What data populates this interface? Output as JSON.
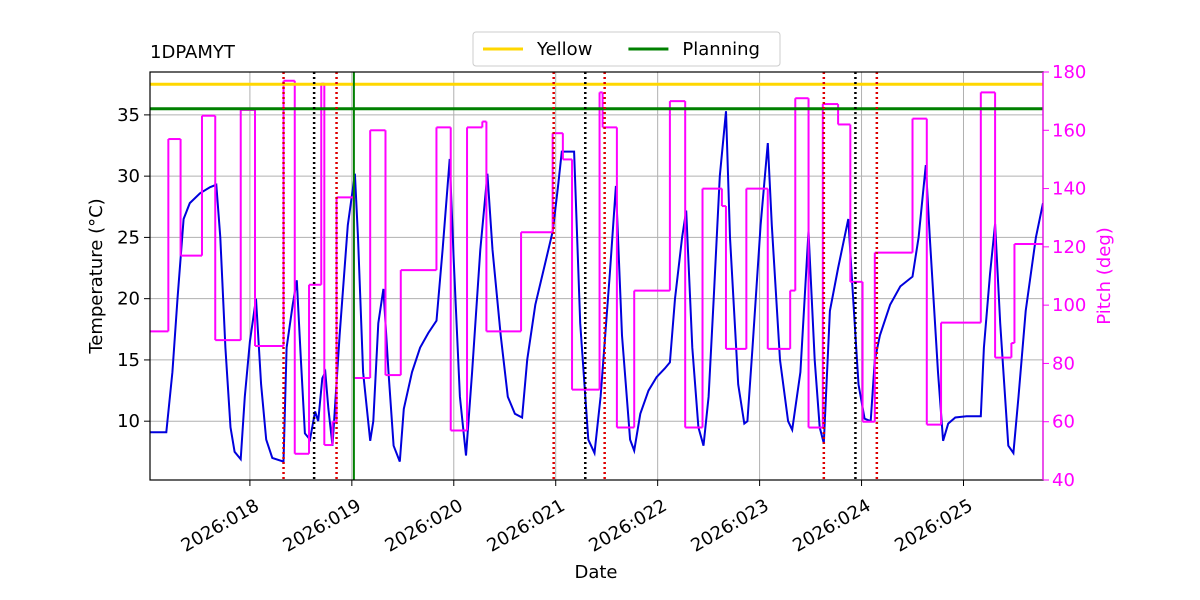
{
  "chart_data": {
    "type": "line",
    "title": "1DPAMYT",
    "xlabel": "Date",
    "ylabel": "Temperature (°C)",
    "y2label": "Pitch (deg)",
    "xlim": [
      17.02,
      25.78
    ],
    "ylim": [
      5.2,
      38.5
    ],
    "y2lim": [
      40,
      180
    ],
    "xticks": [
      {
        "value": 18,
        "label": "2026:018"
      },
      {
        "value": 19,
        "label": "2026:019"
      },
      {
        "value": 20,
        "label": "2026:020"
      },
      {
        "value": 21,
        "label": "2026:021"
      },
      {
        "value": 22,
        "label": "2026:022"
      },
      {
        "value": 23,
        "label": "2026:023"
      },
      {
        "value": 24,
        "label": "2026:024"
      },
      {
        "value": 25,
        "label": "2026:025"
      }
    ],
    "yticks": [
      10,
      15,
      20,
      25,
      30,
      35
    ],
    "y2ticks": [
      40,
      60,
      80,
      100,
      120,
      140,
      160,
      180
    ],
    "grid": true,
    "legend": "top",
    "y2color": "#ff00ff",
    "series": [
      {
        "color": "#0000dd",
        "axis": "y",
        "x": [
          17.02,
          17.18,
          17.24,
          17.29,
          17.35,
          17.41,
          17.51,
          17.61,
          17.67,
          17.71,
          17.76,
          17.81,
          17.85,
          17.91,
          17.95,
          18.0,
          18.06,
          18.11,
          18.16,
          18.22,
          18.33,
          18.36,
          18.42,
          18.46,
          18.5,
          18.54,
          18.59,
          18.64,
          18.67,
          18.71,
          18.74,
          18.77,
          18.81,
          18.88,
          18.96,
          19.03,
          19.06,
          19.11,
          19.18,
          19.21,
          19.26,
          19.31,
          19.36,
          19.41,
          19.47,
          19.51,
          19.59,
          19.67,
          19.75,
          19.83,
          19.89,
          19.96,
          20.0,
          20.06,
          20.12,
          20.18,
          20.26,
          20.33,
          20.38,
          20.46,
          20.53,
          20.6,
          20.67,
          20.72,
          20.8,
          20.9,
          20.97,
          21.02,
          21.06,
          21.18,
          21.24,
          21.32,
          21.38,
          21.44,
          21.53,
          21.59,
          21.65,
          21.73,
          21.77,
          21.83,
          21.91,
          21.99,
          22.07,
          22.12,
          22.17,
          22.24,
          22.28,
          22.34,
          22.4,
          22.45,
          22.5,
          22.55,
          22.61,
          22.67,
          22.71,
          22.79,
          22.85,
          22.88,
          22.93,
          23.01,
          23.08,
          23.12,
          23.2,
          23.28,
          23.32,
          23.4,
          23.48,
          23.54,
          23.59,
          23.63,
          23.69,
          23.77,
          23.87,
          23.91,
          23.97,
          24.03,
          24.09,
          24.13,
          24.18,
          24.28,
          24.38,
          24.5,
          24.56,
          24.63,
          24.67,
          24.75,
          24.8,
          24.85,
          24.92,
          25.03,
          25.17,
          25.2,
          25.26,
          25.31,
          25.36,
          25.44,
          25.49,
          25.54,
          25.61,
          25.71,
          25.78
        ],
        "values": [
          9.1,
          9.1,
          14,
          20,
          26.5,
          27.8,
          28.6,
          29.1,
          29.3,
          25,
          16,
          9.5,
          7.5,
          6.9,
          12,
          16.5,
          20,
          13,
          8.5,
          7,
          6.7,
          16,
          19.5,
          21.5,
          15,
          9,
          8.5,
          10.8,
          10,
          13.5,
          14,
          11,
          8,
          17,
          26,
          30.2,
          25,
          14,
          8.4,
          10,
          18,
          20.8,
          14,
          8,
          6.7,
          11,
          14,
          16,
          17.2,
          18.2,
          24,
          31.4,
          23,
          12,
          7.2,
          14,
          24,
          30.2,
          24,
          17,
          12,
          10.6,
          10.3,
          15,
          19.5,
          23,
          25.5,
          29,
          32,
          32,
          18,
          8.5,
          7.4,
          12,
          22,
          29.2,
          17,
          8.5,
          7.6,
          10.6,
          12.5,
          13.6,
          14.3,
          14.8,
          20,
          25,
          27.2,
          16,
          9.5,
          8,
          12,
          20,
          30,
          35.3,
          25,
          13,
          9.8,
          10,
          16,
          26,
          32.7,
          26,
          15,
          10,
          9.3,
          14,
          25.5,
          15,
          9.5,
          8.2,
          19,
          22.5,
          26.5,
          21,
          13,
          10.2,
          10,
          15,
          17,
          19.5,
          21,
          21.8,
          25,
          30.9,
          25,
          14,
          8.4,
          9.8,
          10.3,
          10.4,
          10.4,
          16,
          22,
          26.1,
          18,
          8,
          7.4,
          12,
          19,
          25,
          27.8
        ]
      },
      {
        "color": "#ff00ff",
        "axis": "y2",
        "drawstyle": "steps-post",
        "x": [
          17.02,
          17.2,
          17.32,
          17.53,
          17.66,
          17.91,
          18.05,
          18.33,
          18.44,
          18.58,
          18.7,
          18.73,
          18.81,
          18.85,
          19.02,
          19.18,
          19.33,
          19.48,
          19.83,
          19.97,
          20.13,
          20.28,
          20.32,
          20.66,
          20.97,
          21.07,
          21.16,
          21.43,
          21.46,
          21.6,
          21.77,
          22.12,
          22.27,
          22.44,
          22.63,
          22.67,
          22.87,
          23.08,
          23.3,
          23.35,
          23.48,
          23.62,
          23.77,
          23.89,
          24.01,
          24.13,
          24.5,
          24.64,
          24.78,
          25.17,
          25.31,
          25.47,
          25.5,
          25.78
        ],
        "values": [
          91,
          157,
          117,
          165,
          88,
          167,
          86,
          177,
          49,
          107,
          176,
          52,
          60,
          137,
          75,
          160,
          76,
          112,
          161,
          57,
          161,
          163,
          91,
          125,
          159,
          150,
          71,
          173,
          161,
          58,
          105,
          170,
          58,
          140,
          134,
          85,
          140,
          85,
          105,
          171,
          58,
          169,
          162,
          108,
          60,
          118,
          164,
          59,
          94,
          173,
          82,
          87,
          121,
          121
        ]
      }
    ],
    "hlines": [
      {
        "name": "Yellow",
        "color": "#ffd700",
        "value": 37.5
      },
      {
        "name": "Planning",
        "color": "#008000",
        "value": 35.5
      }
    ],
    "vlines": [
      {
        "color": "#dd0000",
        "style": "dotted",
        "x": [
          18.33,
          18.85,
          20.98,
          21.48,
          23.63,
          24.15
        ]
      },
      {
        "color": "#000000",
        "style": "dotted",
        "x": [
          18.63,
          21.29,
          23.94
        ]
      },
      {
        "color": "#008000",
        "style": "solid",
        "x": [
          19.02
        ]
      }
    ]
  }
}
